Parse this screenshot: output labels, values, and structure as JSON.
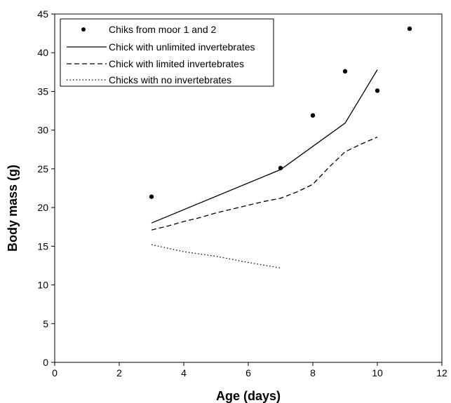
{
  "chart_data": {
    "type": "line",
    "title": "",
    "xlabel": "Age (days)",
    "ylabel": "Body mass (g)",
    "xlim": [
      0,
      12
    ],
    "ylim": [
      0,
      45
    ],
    "xticks": [
      0,
      2,
      4,
      6,
      8,
      10,
      12
    ],
    "yticks": [
      0,
      5,
      10,
      15,
      20,
      25,
      30,
      35,
      40,
      45
    ],
    "grid": false,
    "legend_position": "top-left",
    "series": [
      {
        "name": "Chiks from moor 1 and 2",
        "style": "markers",
        "x": [
          3,
          7,
          8,
          9,
          10,
          11
        ],
        "y": [
          21.4,
          25.1,
          31.9,
          37.6,
          35.1,
          43.1
        ]
      },
      {
        "name": "Chick with unlimited invertebrates",
        "style": "solid",
        "x": [
          3,
          7,
          9,
          10
        ],
        "y": [
          18.0,
          24.9,
          30.9,
          37.8
        ]
      },
      {
        "name": "Chick with limited invertebrates",
        "style": "dashed",
        "x": [
          3,
          3.5,
          4,
          4.5,
          5,
          5.5,
          6,
          6.5,
          7,
          7.5,
          8,
          8.5,
          9,
          9.5,
          10
        ],
        "y": [
          17.1,
          17.6,
          18.2,
          18.7,
          19.3,
          19.8,
          20.3,
          20.8,
          21.2,
          22.0,
          23.0,
          25.2,
          27.2,
          28.2,
          29.1
        ]
      },
      {
        "name": "Chicks with no invertebrates",
        "style": "dotted",
        "x": [
          3,
          4,
          5,
          6,
          7
        ],
        "y": [
          15.2,
          14.3,
          13.7,
          12.9,
          12.2
        ]
      }
    ]
  }
}
